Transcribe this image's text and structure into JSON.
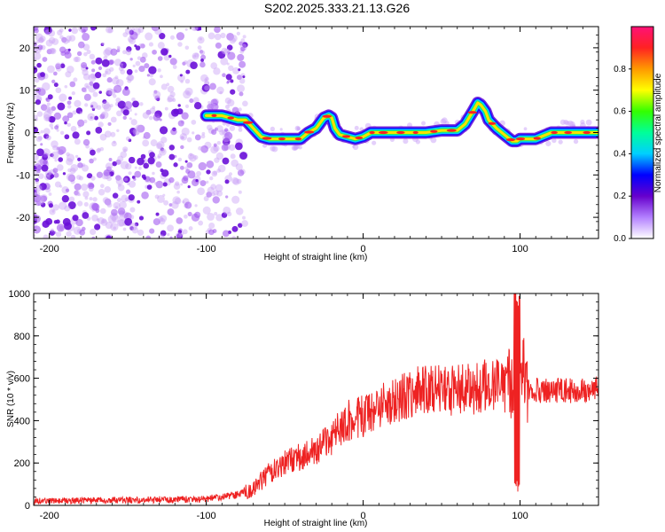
{
  "title": "S202.2025.333.21.13.G26",
  "chart_data": [
    {
      "type": "heatmap",
      "xlabel": "Height of straight line (km)",
      "ylabel": "Frequency (Hz)",
      "xlim": [
        -210,
        150
      ],
      "ylim": [
        -25,
        25
      ],
      "xticks": [
        -200,
        -100,
        0,
        100
      ],
      "yticks": [
        20,
        10,
        0,
        -10,
        -20
      ],
      "colorbar": {
        "label": "Normalized spectral amplitude",
        "range": [
          0,
          1
        ],
        "ticks": [
          0.0,
          0.2,
          0.4,
          0.6,
          0.8
        ],
        "tick_labels": [
          "0.0",
          "0.2",
          "0.4",
          "0.6",
          "0.8"
        ],
        "colors": [
          "#ffffff",
          "#b380ff",
          "#6600cc",
          "#0000ff",
          "#00cfff",
          "#00ff99",
          "#33ff00",
          "#ffff00",
          "#ff9900",
          "#ff2222",
          "#ff1177"
        ]
      },
      "noise_region_x": [
        -210,
        -75
      ],
      "ridge": {
        "x": [
          -100,
          -90,
          -80,
          -75,
          -70,
          -65,
          -60,
          -55,
          -50,
          -45,
          -40,
          -35,
          -30,
          -25,
          -22,
          -20,
          -18,
          -15,
          -10,
          -5,
          0,
          5,
          10,
          20,
          30,
          40,
          50,
          60,
          65,
          70,
          73,
          75,
          78,
          80,
          85,
          90,
          95,
          98,
          100,
          105,
          110,
          120,
          130,
          140,
          150
        ],
        "y": [
          4,
          4,
          3,
          3,
          1,
          -1,
          -1.5,
          -1.5,
          -1.5,
          -1.5,
          -1.5,
          0,
          1,
          3.5,
          4,
          3.5,
          1,
          -0.5,
          -1,
          -1.5,
          -1,
          0,
          0,
          0,
          0,
          0,
          0.5,
          0.5,
          2,
          5,
          7,
          6.5,
          5,
          3,
          1,
          -0.5,
          -2,
          -2,
          -1.5,
          -1.5,
          -1.5,
          0,
          0,
          0,
          0
        ]
      }
    },
    {
      "type": "line",
      "xlabel": "Height of straight line (km)",
      "ylabel": "SNR (10 * v/v)",
      "xlim": [
        -210,
        150
      ],
      "ylim": [
        0,
        1000
      ],
      "xticks": [
        -200,
        -100,
        0,
        100
      ],
      "yticks": [
        0,
        200,
        400,
        600,
        800,
        1000
      ],
      "color": "#ee2222",
      "trend": {
        "x": [
          -210,
          -150,
          -100,
          -80,
          -70,
          -60,
          -50,
          -40,
          -30,
          -20,
          -10,
          0,
          10,
          20,
          30,
          40,
          50,
          60,
          70,
          80,
          85,
          90,
          95,
          97,
          98,
          99,
          100,
          102,
          105,
          110,
          120,
          130,
          140,
          150
        ],
        "y": [
          20,
          25,
          30,
          50,
          80,
          150,
          200,
          230,
          260,
          320,
          400,
          420,
          460,
          500,
          530,
          540,
          550,
          545,
          550,
          570,
          560,
          560,
          560,
          600,
          300,
          900,
          560,
          650,
          540,
          540,
          545,
          540,
          545,
          550
        ]
      }
    }
  ]
}
